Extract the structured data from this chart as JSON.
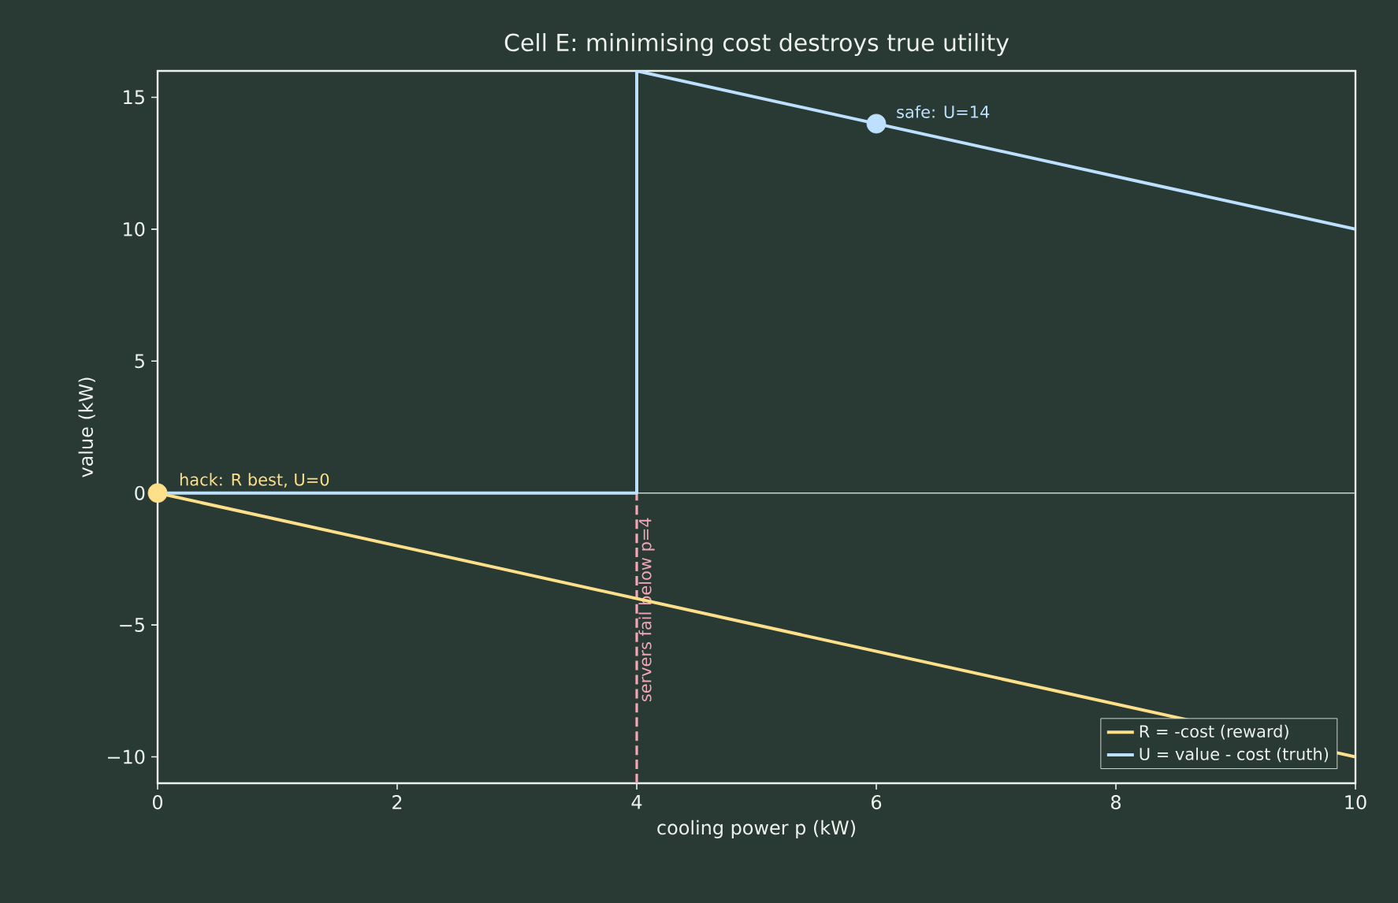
{
  "chart_data": {
    "type": "line",
    "title": "Cell E: minimising cost destroys true utility",
    "xlabel": "cooling power p (kW)",
    "ylabel": "value (kW)",
    "xlim": [
      0,
      10
    ],
    "ylim": [
      -11,
      16
    ],
    "xticks": [
      0,
      2,
      4,
      6,
      8,
      10
    ],
    "yticks": [
      {
        "value": -10,
        "label": "−10"
      },
      {
        "value": -5,
        "label": "−5"
      },
      0,
      5,
      10,
      15
    ],
    "series": [
      {
        "name": "R = -cost (reward)",
        "color": "#ffe08a",
        "x": [
          0,
          10
        ],
        "values": [
          0,
          -10
        ]
      },
      {
        "name": "U = value - cost (truth)",
        "color": "#bde0fe",
        "x": [
          0,
          4,
          4,
          10
        ],
        "values": [
          0,
          0,
          16,
          10
        ]
      },
      {
        "type": "scatter",
        "marker": "circle",
        "color": "#ffe08a",
        "x": [
          0
        ],
        "values": [
          0
        ]
      },
      {
        "type": "scatter",
        "marker": "circle",
        "color": "#bde0fe",
        "x": [
          6
        ],
        "values": [
          14
        ]
      }
    ],
    "ref_lines": [
      {
        "axis": "x",
        "value": 4,
        "label": "servers fail below p=4",
        "color": "#f4a6b8",
        "line_style": "dashed"
      },
      {
        "axis": "y",
        "value": 0,
        "color": "#c8d4cc"
      }
    ],
    "annotations": [
      {
        "text": "hack: R best, U=0",
        "x": 0,
        "y": 0
      },
      {
        "text": "safe: U=14",
        "x": 6,
        "y": 14
      }
    ],
    "legend": "bottom right",
    "grid": false
  }
}
